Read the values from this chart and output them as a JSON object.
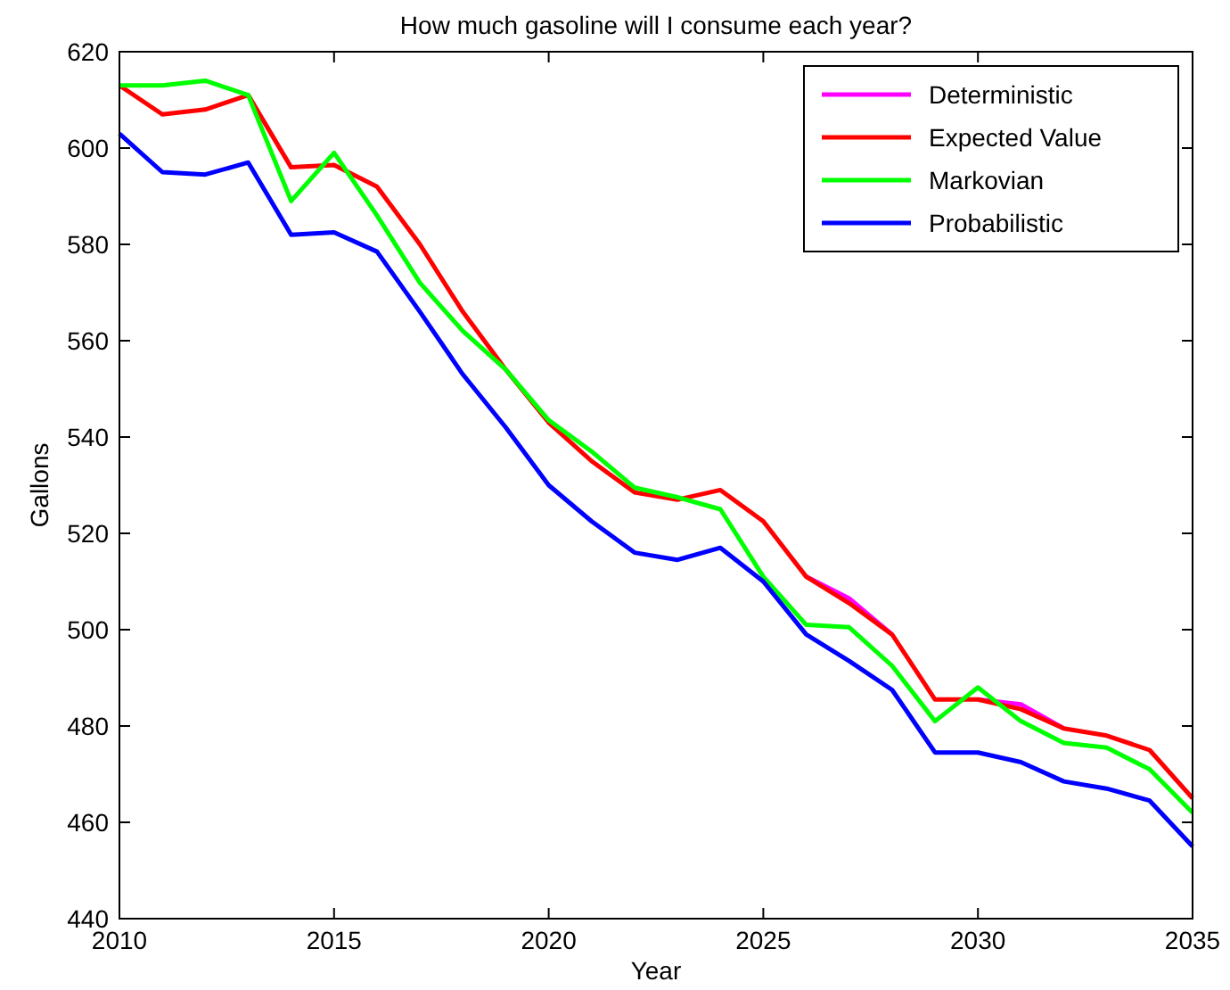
{
  "chart_data": {
    "type": "line",
    "title": "How much gasoline will I consume each year?",
    "xlabel": "Year",
    "ylabel": "Gallons",
    "x": [
      2010,
      2011,
      2012,
      2013,
      2014,
      2015,
      2016,
      2017,
      2018,
      2019,
      2020,
      2021,
      2022,
      2023,
      2024,
      2025,
      2026,
      2027,
      2028,
      2029,
      2030,
      2031,
      2032,
      2033,
      2034,
      2035
    ],
    "series": [
      {
        "name": "Deterministic",
        "color": "#ff00ff",
        "values": [
          null,
          null,
          null,
          null,
          null,
          null,
          null,
          null,
          null,
          null,
          null,
          null,
          null,
          null,
          null,
          null,
          511,
          506.5,
          499,
          null,
          485.5,
          484.5,
          479.5,
          null,
          null,
          null
        ]
      },
      {
        "name": "Expected Value",
        "color": "#ff0000",
        "values": [
          613,
          607,
          608,
          611,
          596,
          596.5,
          592,
          580,
          566,
          554,
          543,
          535,
          528.5,
          527,
          529,
          522.5,
          511,
          505.5,
          499,
          485.5,
          485.5,
          483.5,
          479.5,
          478,
          475,
          465
        ]
      },
      {
        "name": "Markovian",
        "color": "#00ff00",
        "values": [
          613,
          613,
          614,
          611,
          589,
          599,
          586,
          572,
          562,
          554,
          543.5,
          537,
          529.5,
          527.5,
          525,
          511,
          501,
          500.5,
          492.5,
          481,
          488,
          481,
          476.5,
          475.5,
          471,
          462
        ]
      },
      {
        "name": "Probabilistic",
        "color": "#0000ff",
        "values": [
          603,
          595,
          594.5,
          597,
          582,
          582.5,
          578.5,
          566,
          553,
          542,
          530,
          522.5,
          516,
          514.5,
          517,
          510,
          499,
          493.5,
          487.5,
          474.5,
          474.5,
          472.5,
          468.5,
          467,
          464.5,
          455
        ]
      }
    ],
    "xlim": [
      2010,
      2035
    ],
    "xticks": [
      2010,
      2015,
      2020,
      2025,
      2030,
      2035
    ],
    "ylim": [
      440,
      620
    ],
    "yticks": [
      440,
      460,
      480,
      500,
      520,
      540,
      560,
      580,
      600,
      620
    ],
    "grid": false,
    "legend": "top right",
    "marker": "none",
    "line_style": "solid"
  }
}
